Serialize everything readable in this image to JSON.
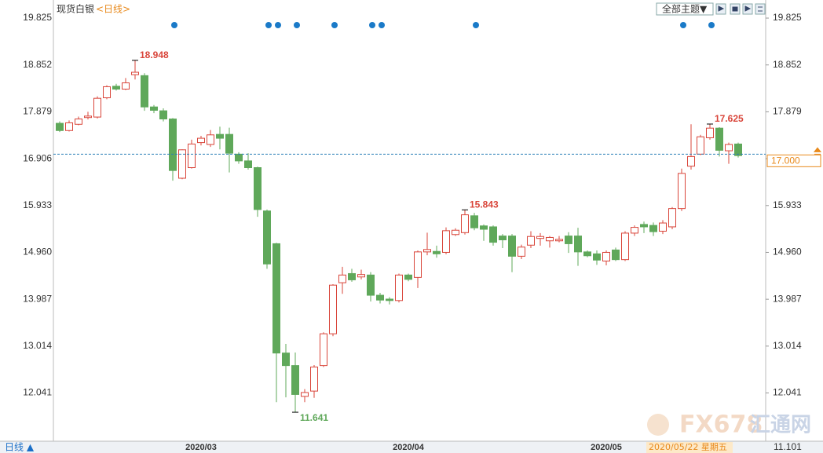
{
  "chart_data": {
    "type": "candlestick",
    "title": "现货白银",
    "period_label": "<日线>",
    "theme_button": "全部主题▼",
    "bottom_button": "日线 ▲",
    "cursor_date": "2020/05/22 星期五",
    "cursor_value": "11.101",
    "watermark": [
      "FX678",
      "汇通网"
    ],
    "up_color": "#d9453a",
    "down_color": "#5fa85a",
    "event_color": "#1a7ac8",
    "categories": [
      null,
      null,
      null,
      null,
      null,
      null,
      null,
      null,
      null,
      null,
      null,
      null,
      null,
      null,
      null,
      "2020/03",
      null,
      null,
      null,
      null,
      null,
      null,
      null,
      null,
      null,
      null,
      null,
      null,
      null,
      null,
      null,
      null,
      null,
      null,
      null,
      null,
      null,
      "2020/04",
      null,
      null,
      null,
      null,
      null,
      null,
      null,
      null,
      null,
      null,
      null,
      null,
      null,
      null,
      null,
      null,
      null,
      null,
      null,
      null,
      "2020/05",
      null,
      null,
      null,
      null,
      null,
      null,
      null,
      null,
      null,
      null,
      null,
      null,
      null,
      null
    ],
    "open": [
      17.64,
      17.49,
      17.62,
      17.76,
      17.77,
      18.17,
      18.41,
      18.35,
      18.65,
      18.63,
      17.98,
      17.9,
      17.73,
      16.5,
      16.72,
      17.24,
      17.2,
      17.41,
      17.41,
      17.0,
      16.86,
      16.72,
      15.82,
      15.14,
      12.87,
      12.61,
      11.97,
      12.08,
      12.61,
      13.27,
      14.33,
      14.52,
      14.45,
      14.49,
      14.07,
      13.99,
      13.96,
      14.49,
      14.44,
      14.97,
      14.98,
      14.96,
      15.33,
      15.37,
      15.72,
      15.51,
      15.49,
      15.3,
      15.3,
      14.88,
      15.11,
      15.25,
      15.2,
      15.2,
      15.3,
      15.3,
      14.97,
      14.93,
      14.78,
      15.01,
      14.81,
      15.36,
      15.54,
      15.52,
      15.4,
      15.49,
      15.87,
      16.75,
      17.0,
      17.34,
      17.54,
      17.07,
      17.21
    ],
    "high": [
      17.68,
      17.7,
      17.78,
      17.88,
      18.2,
      18.43,
      18.46,
      18.58,
      18.948,
      18.68,
      18.02,
      17.95,
      17.75,
      17.1,
      17.3,
      17.38,
      17.5,
      17.57,
      17.55,
      17.04,
      17.02,
      16.74,
      15.85,
      15.16,
      13.06,
      12.88,
      12.12,
      12.62,
      13.3,
      14.3,
      14.66,
      14.62,
      14.6,
      14.55,
      14.12,
      14.03,
      14.52,
      14.52,
      15.0,
      15.37,
      15.1,
      15.48,
      15.46,
      15.843,
      15.78,
      15.54,
      15.52,
      15.34,
      15.34,
      15.12,
      15.4,
      15.36,
      15.3,
      15.3,
      15.38,
      15.47,
      15.0,
      15.0,
      15.0,
      15.06,
      15.4,
      15.52,
      15.6,
      15.58,
      15.63,
      15.9,
      16.7,
      17.62,
      17.4,
      17.625,
      17.56,
      17.24,
      17.24
    ],
    "low": [
      17.46,
      17.47,
      17.6,
      17.72,
      17.74,
      18.14,
      18.32,
      18.33,
      18.55,
      17.9,
      17.85,
      17.68,
      16.45,
      16.48,
      16.7,
      17.18,
      17.15,
      17.1,
      16.62,
      16.8,
      16.68,
      15.7,
      14.62,
      11.85,
      11.95,
      11.641,
      11.85,
      11.94,
      12.58,
      13.22,
      14.1,
      14.35,
      14.4,
      13.94,
      13.9,
      13.88,
      13.92,
      14.36,
      14.22,
      14.9,
      14.85,
      14.92,
      15.3,
      15.33,
      15.42,
      15.2,
      15.1,
      15.05,
      14.55,
      14.82,
      15.05,
      15.1,
      15.06,
      15.17,
      14.95,
      14.68,
      14.86,
      14.7,
      14.69,
      14.78,
      14.78,
      15.3,
      15.36,
      15.3,
      15.34,
      15.44,
      15.82,
      16.68,
      16.98,
      17.3,
      16.95,
      16.8,
      16.93
    ],
    "close": [
      17.49,
      17.65,
      17.73,
      17.79,
      18.16,
      18.4,
      18.35,
      18.48,
      18.7,
      17.98,
      17.91,
      17.73,
      16.66,
      17.09,
      17.21,
      17.33,
      17.4,
      17.33,
      17.02,
      16.86,
      16.72,
      15.85,
      14.72,
      12.87,
      12.61,
      12.01,
      12.05,
      12.58,
      13.27,
      14.28,
      14.49,
      14.39,
      14.5,
      14.07,
      13.97,
      13.96,
      14.49,
      14.4,
      14.97,
      15.02,
      14.93,
      15.41,
      15.42,
      15.74,
      15.47,
      15.44,
      15.17,
      15.22,
      14.88,
      15.07,
      15.29,
      15.29,
      15.27,
      15.23,
      15.14,
      14.97,
      14.89,
      14.8,
      14.96,
      14.81,
      15.36,
      15.48,
      15.49,
      15.39,
      15.57,
      15.87,
      16.6,
      16.95,
      17.36,
      17.54,
      17.08,
      17.2,
      16.97
    ],
    "annotations": [
      {
        "index": 8,
        "value": 18.948,
        "color": "#d9453a"
      },
      {
        "index": 25,
        "value": 11.641,
        "color": "#5fa85a"
      },
      {
        "index": 43,
        "value": 15.843,
        "color": "#d9453a"
      },
      {
        "index": 69,
        "value": 17.625,
        "color": "#d9453a"
      }
    ],
    "events": [
      12,
      22,
      23,
      25,
      29,
      33,
      34,
      44,
      66,
      69
    ],
    "last_price": {
      "value": 17,
      "label": "17.000"
    },
    "ylim": [
      10.99,
      20.07
    ],
    "yticks": [
      12.041,
      13.014,
      13.987,
      {
        "value": 14.96,
        "label": "14.960"
      },
      15.933,
      16.906,
      17.879,
      18.852,
      19.825
    ]
  }
}
